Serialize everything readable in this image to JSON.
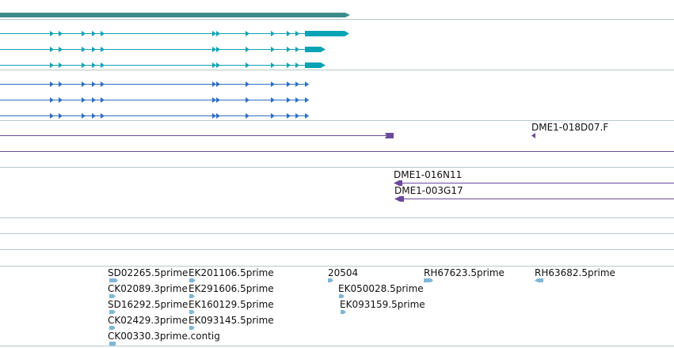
{
  "colors": {
    "separator": "#b8c7cc",
    "gene_span": "#3d8b8b",
    "transcript": "#0aa3b5",
    "cds": "#2f6fc4",
    "clone_end": "#6a4a9c",
    "est": "#7fb6d8",
    "label": "#111111"
  },
  "tracks": {
    "clone_ends": {
      "labels": [
        "DME1-018D07.F",
        "DME1-016N11",
        "DME1-003G17"
      ]
    },
    "ests": {
      "labels": [
        "SD02265.5prime",
        "EK201106.5prime",
        "20504",
        "RH67623.5prime",
        "RH63682.5prime",
        "CK02089.3prime",
        "EK291606.5prime",
        "EK050028.5prime",
        "SD16292.5prime",
        "EK160129.5prime",
        "EK093159.5prime",
        "CK02429.3prime",
        "EK093145.5prime",
        "CK00330.3prime.contig"
      ]
    }
  }
}
